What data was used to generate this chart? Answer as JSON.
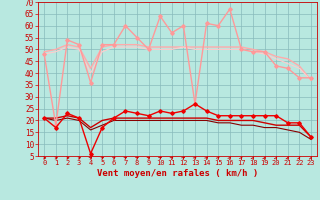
{
  "title": "Vent moyen/en rafales ( km/h )",
  "background_color": "#b8e8e0",
  "grid_color": "#88bbbb",
  "x_labels": [
    0,
    1,
    2,
    3,
    4,
    5,
    6,
    7,
    8,
    9,
    10,
    11,
    12,
    13,
    14,
    15,
    16,
    17,
    18,
    19,
    20,
    21,
    22,
    23
  ],
  "ylim": [
    5,
    70
  ],
  "yticks": [
    5,
    10,
    15,
    20,
    25,
    30,
    35,
    40,
    45,
    50,
    55,
    60,
    65,
    70
  ],
  "lines": [
    {
      "y": [
        48,
        18,
        54,
        52,
        36,
        52,
        52,
        60,
        55,
        50,
        64,
        57,
        60,
        27,
        61,
        60,
        67,
        50,
        49,
        49,
        43,
        42,
        38,
        38
      ],
      "color": "#ff9999",
      "marker": "D",
      "markersize": 1.8,
      "linewidth": 1.0
    },
    {
      "y": [
        49,
        50,
        52,
        51,
        42,
        51,
        52,
        52,
        52,
        51,
        51,
        51,
        51,
        51,
        51,
        51,
        51,
        51,
        50,
        49,
        47,
        46,
        43,
        37
      ],
      "color": "#ffaaaa",
      "marker": null,
      "markersize": 0,
      "linewidth": 1.0
    },
    {
      "y": [
        48,
        49,
        51,
        50,
        40,
        49,
        51,
        51,
        51,
        50,
        50,
        50,
        51,
        50,
        50,
        50,
        50,
        50,
        49,
        48,
        46,
        44,
        42,
        37
      ],
      "color": "#ffcccc",
      "marker": null,
      "markersize": 0,
      "linewidth": 0.8
    },
    {
      "y": [
        21,
        17,
        23,
        21,
        6,
        17,
        21,
        24,
        23,
        22,
        24,
        23,
        24,
        27,
        24,
        22,
        22,
        22,
        22,
        22,
        22,
        19,
        19,
        13
      ],
      "color": "#ee0000",
      "marker": "D",
      "markersize": 1.8,
      "linewidth": 1.0
    },
    {
      "y": [
        21,
        21,
        22,
        21,
        17,
        20,
        21,
        21,
        21,
        21,
        21,
        21,
        21,
        21,
        21,
        20,
        20,
        20,
        20,
        19,
        18,
        18,
        18,
        13
      ],
      "color": "#cc0000",
      "marker": null,
      "markersize": 0,
      "linewidth": 1.0
    },
    {
      "y": [
        21,
        20,
        21,
        20,
        16,
        18,
        20,
        20,
        20,
        20,
        20,
        20,
        20,
        20,
        20,
        19,
        19,
        18,
        18,
        17,
        17,
        16,
        15,
        12
      ],
      "color": "#880000",
      "marker": null,
      "markersize": 0,
      "linewidth": 0.8
    }
  ],
  "arrow_angles": [
    90,
    80,
    85,
    75,
    45,
    60,
    55,
    52,
    50,
    48,
    42,
    38,
    35,
    32,
    30,
    28,
    25,
    22,
    20,
    18,
    18,
    15,
    15,
    12
  ],
  "arrow_color": "#cc0000",
  "tick_color": "#cc0000",
  "label_color": "#cc0000",
  "xlabel_fontsize": 6.5,
  "ytick_fontsize": 5.5,
  "xtick_fontsize": 5.0
}
